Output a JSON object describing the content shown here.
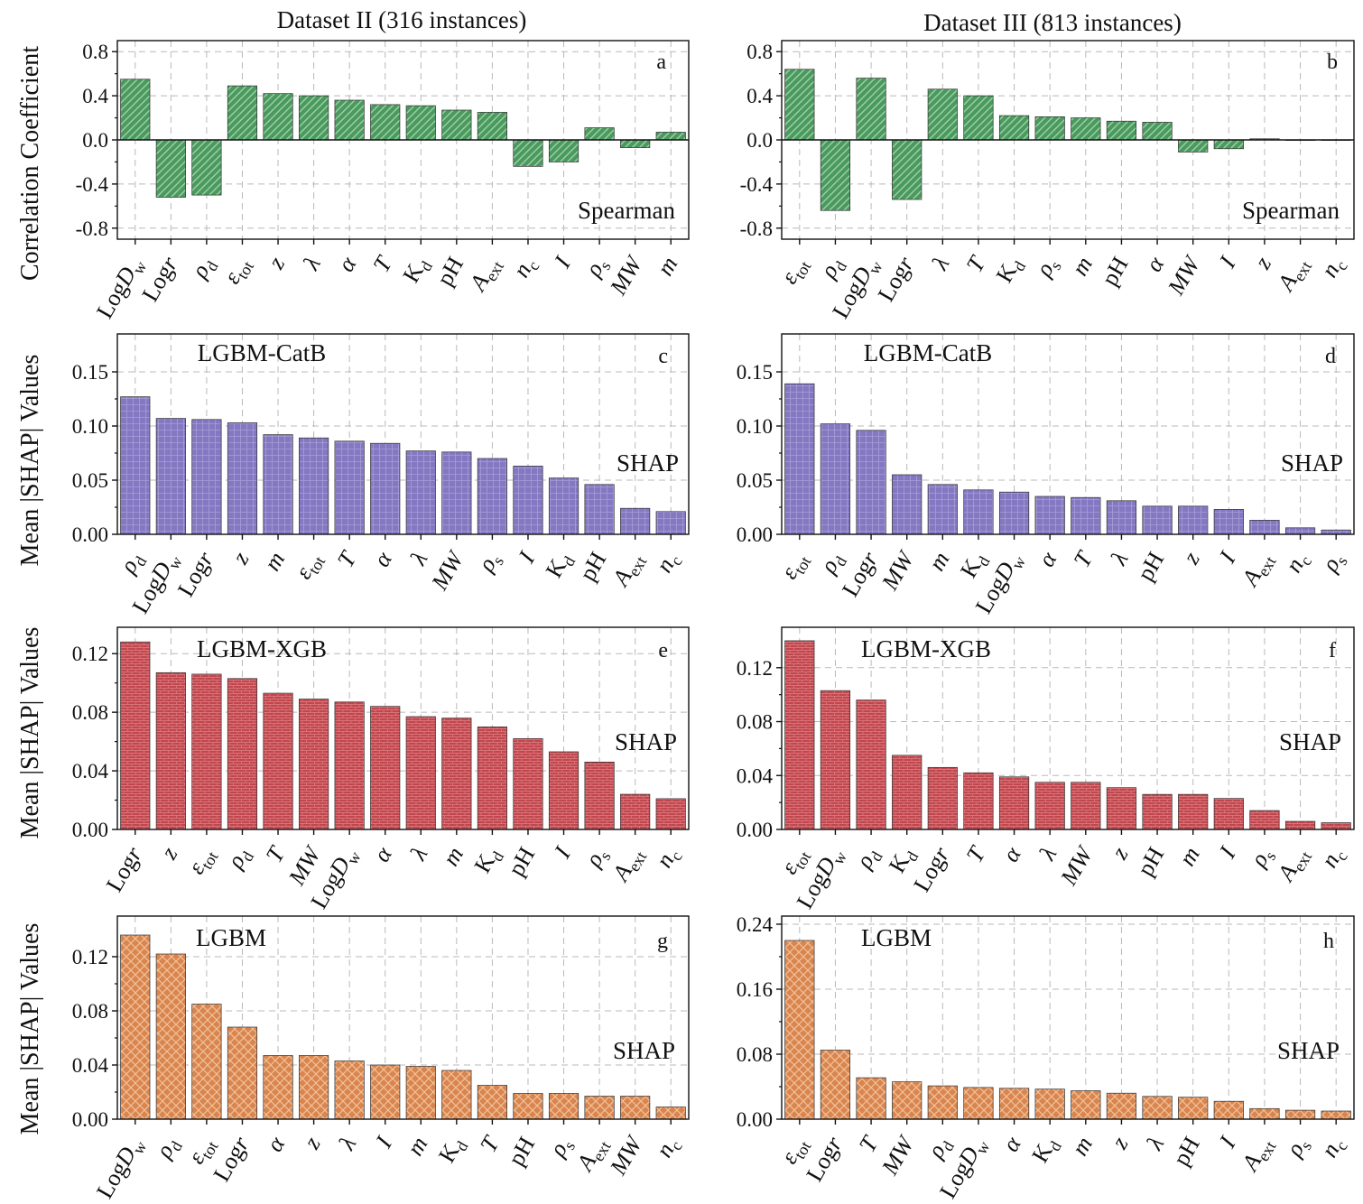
{
  "dataset_titles": [
    "Dataset II (316 instances)",
    "Dataset III (813 instances)"
  ],
  "ylabels": {
    "row1": "Correlation Coefficient",
    "row2": "Mean |SHAP| Values",
    "row3": "Mean |SHAP| Values",
    "row4": "Mean |SHAP| Values"
  },
  "colors": {
    "green": "#4a9a5f",
    "purple": "#8478c2",
    "red": "#c1474e",
    "orange": "#d9854d"
  },
  "chart_data": [
    {
      "panel": "a",
      "type": "bar",
      "method": "Spearman",
      "model": "",
      "ylabel": "Correlation Coefficient",
      "ylim": [
        -0.9,
        0.9
      ],
      "yticks": [
        -0.8,
        -0.4,
        0.0,
        0.4,
        0.8
      ],
      "ytick_labels": [
        "-0.8",
        "-0.4",
        "0.0",
        "0.4",
        "0.8"
      ],
      "categories": [
        "LogD_w",
        "Logr",
        "ρ_d",
        "ε_tot",
        "z",
        "λ",
        "α",
        "T",
        "K_d",
        "pH",
        "A_ext",
        "n_c",
        "I",
        "ρ_s",
        "MW",
        "m"
      ],
      "values": [
        0.55,
        -0.52,
        -0.5,
        0.49,
        0.42,
        0.4,
        0.36,
        0.32,
        0.31,
        0.27,
        0.25,
        -0.24,
        -0.2,
        0.11,
        -0.07,
        0.07
      ]
    },
    {
      "panel": "b",
      "type": "bar",
      "method": "Spearman",
      "model": "",
      "ylabel": "",
      "ylim": [
        -0.9,
        0.9
      ],
      "yticks": [
        -0.8,
        -0.4,
        0.0,
        0.4,
        0.8
      ],
      "ytick_labels": [
        "-0.8",
        "-0.4",
        "0.0",
        "0.4",
        "0.8"
      ],
      "categories": [
        "ε_tot",
        "ρ_d",
        "LogD_w",
        "Logr",
        "λ",
        "T",
        "K_d",
        "ρ_s",
        "m",
        "pH",
        "α",
        "MW",
        "I",
        "z",
        "A_ext",
        "n_c"
      ],
      "values": [
        0.64,
        -0.64,
        0.56,
        -0.54,
        0.46,
        0.4,
        0.22,
        0.21,
        0.2,
        0.17,
        0.16,
        -0.11,
        -0.08,
        0.01,
        0.0,
        0.0
      ]
    },
    {
      "panel": "c",
      "type": "bar",
      "method": "SHAP",
      "model": "LGBM-CatB",
      "ylabel": "Mean |SHAP| Values",
      "ylim": [
        0,
        0.185
      ],
      "yticks": [
        0,
        0.05,
        0.1,
        0.15
      ],
      "ytick_labels": [
        "0.00",
        "0.05",
        "0.10",
        "0.15"
      ],
      "categories": [
        "ρ_d",
        "LogD_w",
        "Logr",
        "z",
        "m",
        "ε_tot",
        "T",
        "α",
        "λ",
        "MW",
        "ρ_s",
        "I",
        "K_d",
        "pH",
        "A_ext",
        "n_c"
      ],
      "values": [
        0.127,
        0.107,
        0.106,
        0.103,
        0.092,
        0.089,
        0.086,
        0.084,
        0.077,
        0.076,
        0.07,
        0.063,
        0.052,
        0.046,
        0.024,
        0.021
      ]
    },
    {
      "panel": "d",
      "type": "bar",
      "method": "SHAP",
      "model": "LGBM-CatB",
      "ylabel": "",
      "ylim": [
        0,
        0.185
      ],
      "yticks": [
        0,
        0.05,
        0.1,
        0.15
      ],
      "ytick_labels": [
        "0.00",
        "0.05",
        "0.10",
        "0.15"
      ],
      "categories": [
        "ε_tot",
        "ρ_d",
        "Logr",
        "MW",
        "m",
        "K_d",
        "LogD_w",
        "α",
        "T",
        "λ",
        "pH",
        "z",
        "I",
        "A_ext",
        "n_c",
        "ρ_s"
      ],
      "values": [
        0.139,
        0.102,
        0.096,
        0.055,
        0.046,
        0.041,
        0.039,
        0.035,
        0.034,
        0.031,
        0.026,
        0.026,
        0.023,
        0.013,
        0.006,
        0.004
      ]
    },
    {
      "panel": "e",
      "type": "bar",
      "method": "SHAP",
      "model": "LGBM-XGB",
      "ylabel": "Mean |SHAP| Values",
      "ylim": [
        0,
        0.138
      ],
      "yticks": [
        0,
        0.04,
        0.08,
        0.12
      ],
      "ytick_labels": [
        "0.00",
        "0.04",
        "0.08",
        "0.12"
      ],
      "categories": [
        "Logr",
        "z",
        "ε_tot",
        "ρ_d",
        "T",
        "MW",
        "LogD_w",
        "α",
        "λ",
        "m",
        "K_d",
        "pH",
        "I",
        "ρ_s",
        "A_ext",
        "n_c"
      ],
      "values": [
        0.128,
        0.107,
        0.106,
        0.103,
        0.093,
        0.089,
        0.087,
        0.084,
        0.077,
        0.076,
        0.07,
        0.062,
        0.053,
        0.046,
        0.024,
        0.021
      ]
    },
    {
      "panel": "f",
      "type": "bar",
      "method": "SHAP",
      "model": "LGBM-XGB",
      "ylabel": "",
      "ylim": [
        0,
        0.15
      ],
      "yticks": [
        0,
        0.04,
        0.08,
        0.12
      ],
      "ytick_labels": [
        "0.00",
        "0.04",
        "0.08",
        "0.12"
      ],
      "categories": [
        "ε_tot",
        "LogD_w",
        "ρ_d",
        "K_d",
        "Logr",
        "T",
        "α",
        "λ",
        "MW",
        "z",
        "pH",
        "m",
        "I",
        "ρ_s",
        "A_ext",
        "n_c"
      ],
      "values": [
        0.14,
        0.103,
        0.096,
        0.055,
        0.046,
        0.042,
        0.039,
        0.035,
        0.035,
        0.031,
        0.026,
        0.026,
        0.023,
        0.014,
        0.006,
        0.005
      ]
    },
    {
      "panel": "g",
      "type": "bar",
      "method": "SHAP",
      "model": "LGBM",
      "ylabel": "Mean |SHAP| Values",
      "ylim": [
        0,
        0.15
      ],
      "yticks": [
        0,
        0.04,
        0.08,
        0.12
      ],
      "ytick_labels": [
        "0.00",
        "0.04",
        "0.08",
        "0.12"
      ],
      "categories": [
        "LogD_w",
        "ρ_d",
        "ε_tot",
        "Logr",
        "α",
        "z",
        "λ",
        "I",
        "m",
        "K_d",
        "T",
        "pH",
        "ρ_s",
        "A_ext",
        "MW",
        "n_c"
      ],
      "values": [
        0.136,
        0.122,
        0.085,
        0.068,
        0.047,
        0.047,
        0.043,
        0.04,
        0.039,
        0.036,
        0.025,
        0.019,
        0.019,
        0.017,
        0.017,
        0.009
      ]
    },
    {
      "panel": "h",
      "type": "bar",
      "method": "SHAP",
      "model": "LGBM",
      "ylabel": "",
      "ylim": [
        0,
        0.25
      ],
      "yticks": [
        0,
        0.08,
        0.16,
        0.24
      ],
      "ytick_labels": [
        "0.00",
        "0.08",
        "0.16",
        "0.24"
      ],
      "categories": [
        "ε_tot",
        "Logr",
        "T",
        "MW",
        "ρ_d",
        "LogD_w",
        "α",
        "K_d",
        "m",
        "z",
        "λ",
        "pH",
        "I",
        "A_ext",
        "ρ_s",
        "n_c"
      ],
      "values": [
        0.22,
        0.085,
        0.051,
        0.046,
        0.041,
        0.039,
        0.038,
        0.037,
        0.035,
        0.032,
        0.028,
        0.027,
        0.022,
        0.013,
        0.011,
        0.01
      ]
    }
  ]
}
